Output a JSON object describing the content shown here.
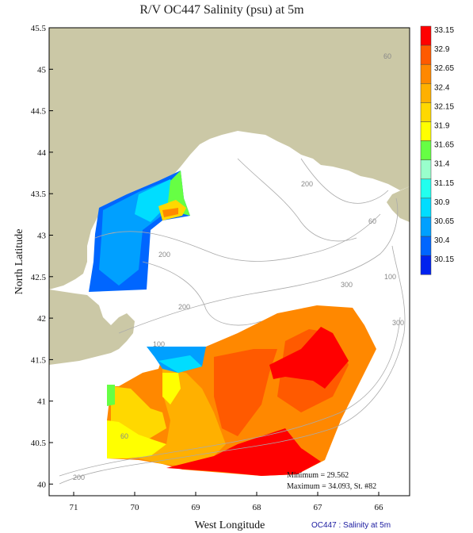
{
  "title": "R/V OC447 Salinity (psu) at 5m",
  "axes": {
    "xlabel": "West Longitude",
    "ylabel": "North Latitude",
    "xticks": [
      "71",
      "70",
      "69",
      "68",
      "67",
      "66"
    ],
    "yticks": [
      "45.5",
      "45",
      "44.5",
      "44",
      "43.5",
      "43",
      "42.5",
      "42",
      "41.5",
      "41",
      "40.5",
      "40"
    ]
  },
  "legend": {
    "values": [
      "33.15",
      "32.9",
      "32.65",
      "32.4",
      "32.15",
      "31.9",
      "31.65",
      "31.4",
      "31.15",
      "30.9",
      "30.65",
      "30.4",
      "30.15"
    ],
    "colors": [
      "#ff0000",
      "#ff5a00",
      "#ff8800",
      "#ffb000",
      "#ffd800",
      "#ffff00",
      "#66ff44",
      "#99ffcc",
      "#22ffee",
      "#00ddff",
      "#00a0ff",
      "#0066ff",
      "#0022ee"
    ]
  },
  "bathymetry_labels": [
    "60",
    "200",
    "60",
    "100",
    "200",
    "300",
    "200",
    "100",
    "300",
    "60",
    "200"
  ],
  "stats": {
    "minimum": "Minimum = 29.562",
    "maximum": "Maximum = 34.093, St. #82"
  },
  "credit": "OC447 : Salinity at 5m"
}
